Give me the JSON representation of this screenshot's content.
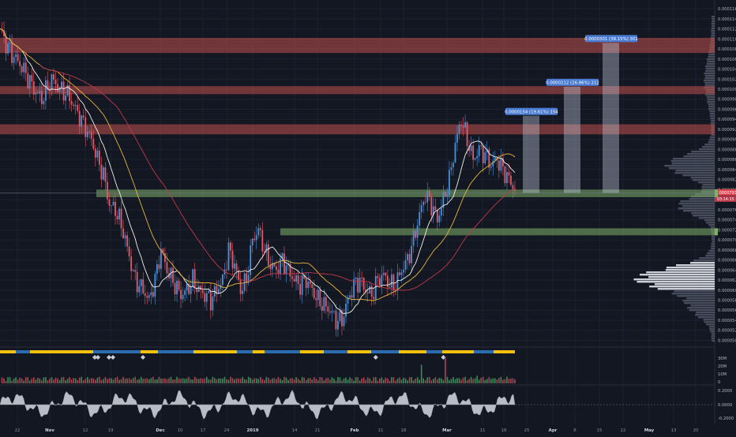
{
  "chart_data": {
    "type": "candlestick",
    "price_axis": {
      "ticks": [
        "0.0001160",
        "0.0001140",
        "0.0001120",
        "0.0001100",
        "0.0001080",
        "0.0001060",
        "0.0001040",
        "0.0001020",
        "0.0001000",
        "0.0000980",
        "0.0000960",
        "0.0000940",
        "0.0000920",
        "0.0000900",
        "0.0000880",
        "0.0000860",
        "0.0000840",
        "0.0000820",
        "0.0000800",
        "0.0000780",
        "0.0000760",
        "0.0000740",
        "0.0000720",
        "0.0000700",
        "0.0000680",
        "0.0000660",
        "0.0000640",
        "0.0000620",
        "0.0000600",
        "0.0000580",
        "0.0000560",
        "0.0000540",
        "0.0000520",
        "0.0000500"
      ],
      "ylim": [
        4.96e-05,
        0.0001168
      ],
      "current_price": "0.0000793",
      "countdown": "03:14:15"
    },
    "time_axis": {
      "labels": [
        "22",
        "Nov",
        "12",
        "19",
        "Dec",
        "10",
        "17",
        "24",
        "2019",
        "14",
        "21",
        "Feb",
        "11",
        "18",
        "Mar",
        "11",
        "18",
        "25",
        "Apr",
        "8",
        "15",
        "22",
        "May",
        "13",
        "20"
      ],
      "bold": [
        "Nov",
        "Dec",
        "2019",
        "Feb",
        "Mar",
        "Apr",
        "May"
      ]
    },
    "resistance_zones": [
      {
        "low": 0.0001072,
        "high": 0.0001102
      },
      {
        "low": 9.9e-05,
        "high": 0.0001006
      },
      {
        "low": 9.1e-05,
        "high": 9.3e-05
      }
    ],
    "support_zones": [
      {
        "low": 7.85e-05,
        "high": 8e-05
      },
      {
        "low": 7.09e-05,
        "high": 7.23e-05
      }
    ],
    "measure_labels": [
      "0.0000154 (19.61%) 154",
      "0.0000212 (26.86%) 212",
      "0.0000301 (38.15%) 301"
    ],
    "volume_axis": {
      "ticks": [
        "30M",
        "20M",
        "10M",
        "0"
      ]
    },
    "oscillator_axis": {
      "ticks": [
        "0.2000",
        "0.0000",
        "-0.2000"
      ]
    },
    "colors": {
      "background": "#131722",
      "bull": "#4a90d9",
      "bear": "#e25a68",
      "ma_fast": "#f2f2e6",
      "ma_mid": "#e6b63a",
      "ma_slow": "#c0394a",
      "resistance": "#c0504d",
      "support": "#7fb069",
      "status_yellow": "#f4c20d",
      "status_blue": "#2b6cb0"
    },
    "price_path": [
      [
        0.000112,
        0
      ],
      [
        0.000109,
        3
      ],
      [
        0.000107,
        6
      ],
      [
        0.000105,
        10
      ],
      [
        0.000103,
        13
      ],
      [
        0.0001,
        17
      ],
      [
        9.8e-05,
        21
      ],
      [
        0.000102,
        26
      ],
      [
        0.0001,
        30
      ],
      [
        9.9e-05,
        34
      ],
      [
        9.6e-05,
        38
      ],
      [
        9.3e-05,
        42
      ],
      [
        9e-05,
        46
      ],
      [
        8.6e-05,
        49
      ],
      [
        8.3e-05,
        52
      ],
      [
        7.7e-05,
        55
      ],
      [
        7.6e-05,
        58
      ],
      [
        7.3e-05,
        61
      ],
      [
        7e-05,
        63
      ],
      [
        6.5e-05,
        66
      ],
      [
        6.2e-05,
        68
      ],
      [
        6e-05,
        72
      ],
      [
        5.8e-05,
        75
      ],
      [
        6.2e-05,
        78
      ],
      [
        6.8e-05,
        81
      ],
      [
        6.4e-05,
        84
      ],
      [
        6.1e-05,
        88
      ],
      [
        5.9e-05,
        91
      ],
      [
        6e-05,
        94
      ],
      [
        6.2e-05,
        97
      ],
      [
        6e-05,
        100
      ],
      [
        5.9e-05,
        103
      ],
      [
        5.8e-05,
        106
      ],
      [
        6e-05,
        109
      ],
      [
        6.2e-05,
        112
      ],
      [
        6.8e-05,
        115
      ],
      [
        6.5e-05,
        118
      ],
      [
        6e-05,
        121
      ],
      [
        6.2e-05,
        124
      ],
      [
        7e-05,
        127
      ],
      [
        7.2e-05,
        130
      ],
      [
        6.8e-05,
        133
      ],
      [
        6.5e-05,
        136
      ],
      [
        6.4e-05,
        139
      ],
      [
        6.6e-05,
        142
      ],
      [
        6.4e-05,
        145
      ],
      [
        6.2e-05,
        148
      ],
      [
        6.1e-05,
        151
      ],
      [
        6.2e-05,
        154
      ],
      [
        6e-05,
        157
      ],
      [
        5.8e-05,
        160
      ],
      [
        5.7e-05,
        163
      ],
      [
        5.6e-05,
        166
      ],
      [
        5.4e-05,
        169
      ],
      [
        5.4e-05,
        172
      ],
      [
        5.8e-05,
        175
      ],
      [
        6.1e-05,
        178
      ],
      [
        6.2e-05,
        181
      ],
      [
        6e-05,
        184
      ],
      [
        5.9e-05,
        187
      ],
      [
        6.2e-05,
        190
      ],
      [
        6.3e-05,
        193
      ],
      [
        6.1e-05,
        196
      ],
      [
        6.1e-05,
        199
      ],
      [
        6.4e-05,
        202
      ],
      [
        6.6e-05,
        205
      ],
      [
        7e-05,
        208
      ],
      [
        7.5e-05,
        211
      ],
      [
        7.9e-05,
        214
      ],
      [
        7.7e-05,
        217
      ],
      [
        7.4e-05,
        220
      ],
      [
        7.8e-05,
        223
      ],
      [
        8.2e-05,
        226
      ],
      [
        8.9e-05,
        229
      ],
      [
        9.4e-05,
        232
      ],
      [
        9e-05,
        235
      ],
      [
        8.6e-05,
        238
      ],
      [
        8.8e-05,
        241
      ],
      [
        8.7e-05,
        244
      ],
      [
        8.5e-05,
        247
      ],
      [
        8.6e-05,
        250
      ],
      [
        8.4e-05,
        253
      ],
      [
        8.2e-05,
        256
      ],
      [
        8e-05,
        259
      ]
    ]
  }
}
